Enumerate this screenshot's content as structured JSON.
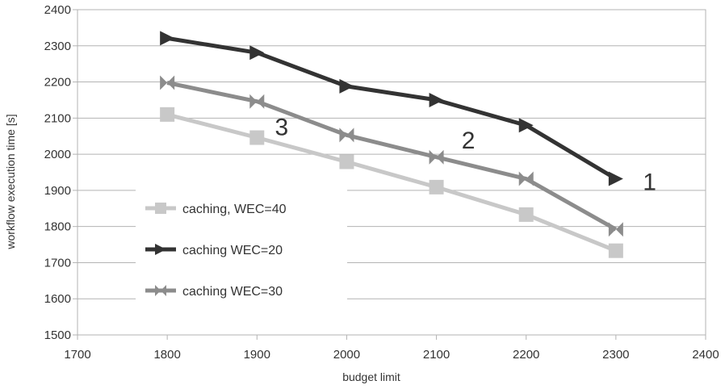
{
  "chart_data": {
    "type": "line",
    "xlabel": "budget limit",
    "ylabel": "workflow execution time [s]",
    "xlim": [
      1700,
      2400
    ],
    "ylim": [
      1500,
      2400
    ],
    "x_ticks": [
      "1700",
      "1800",
      "1900",
      "2000",
      "2100",
      "2200",
      "2300",
      "2400"
    ],
    "y_ticks": [
      "1500",
      "1600",
      "1700",
      "1800",
      "1900",
      "2000",
      "2100",
      "2200",
      "2300",
      "2400"
    ],
    "grid": "horizontal",
    "legend_position": "left",
    "x": [
      1800,
      1900,
      2000,
      2100,
      2200,
      2300
    ],
    "series": [
      {
        "name": "caching, WEC=40",
        "values": [
          2110,
          2046,
          1979,
          1909,
          1833,
          1733
        ],
        "color": "#c8c8c8",
        "marker": "square"
      },
      {
        "name": "caching WEC=20",
        "values": [
          2321,
          2281,
          2188,
          2150,
          2080,
          1932
        ],
        "color": "#333333",
        "marker": "triangle-right"
      },
      {
        "name": "caching WEC=30",
        "values": [
          2198,
          2146,
          2053,
          1992,
          1932,
          1792
        ],
        "color": "#8c8c8c",
        "marker": "bowtie"
      }
    ],
    "annotations": [
      {
        "text": "1",
        "x": 2330,
        "y": 1925
      },
      {
        "text": "2",
        "x": 2128,
        "y": 2040
      },
      {
        "text": "3",
        "x": 1920,
        "y": 2077
      }
    ]
  }
}
